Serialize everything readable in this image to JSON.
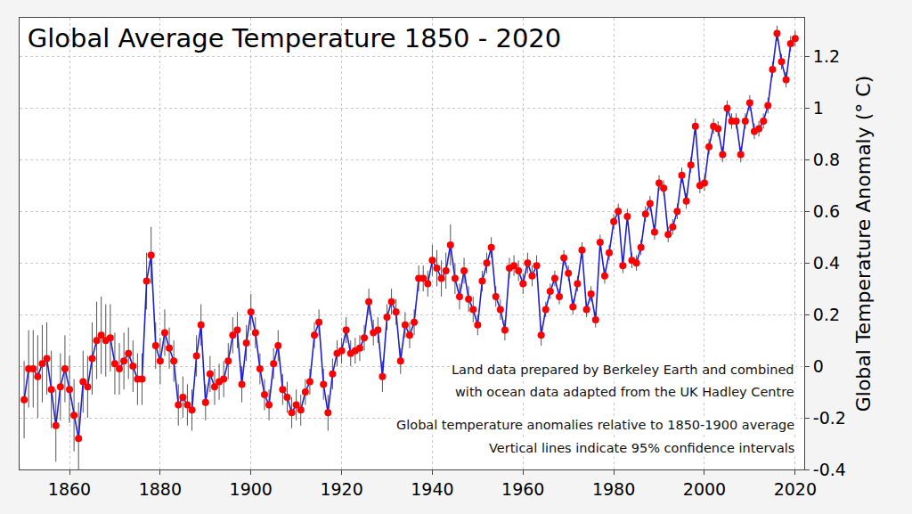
{
  "chart_data": {
    "type": "line",
    "title": "Global Average Temperature 1850 - 2020",
    "y_label": "Global Temperature Anomaly (° C)",
    "annotations": [
      "Land data prepared by Berkeley Earth and combined",
      "with ocean data adapted from the UK Hadley Centre",
      "Global temperature anomalies relative to 1850-1900 average",
      "Vertical lines indicate 95% confidence intervals"
    ],
    "x": [
      1850,
      1851,
      1852,
      1853,
      1854,
      1855,
      1856,
      1857,
      1858,
      1859,
      1860,
      1861,
      1862,
      1863,
      1864,
      1865,
      1866,
      1867,
      1868,
      1869,
      1870,
      1871,
      1872,
      1873,
      1874,
      1875,
      1876,
      1877,
      1878,
      1879,
      1880,
      1881,
      1882,
      1883,
      1884,
      1885,
      1886,
      1887,
      1888,
      1889,
      1890,
      1891,
      1892,
      1893,
      1894,
      1895,
      1896,
      1897,
      1898,
      1899,
      1900,
      1901,
      1902,
      1903,
      1904,
      1905,
      1906,
      1907,
      1908,
      1909,
      1910,
      1911,
      1912,
      1913,
      1914,
      1915,
      1916,
      1917,
      1918,
      1919,
      1920,
      1921,
      1922,
      1923,
      1924,
      1925,
      1926,
      1927,
      1928,
      1929,
      1930,
      1931,
      1932,
      1933,
      1934,
      1935,
      1936,
      1937,
      1938,
      1939,
      1940,
      1941,
      1942,
      1943,
      1944,
      1945,
      1946,
      1947,
      1948,
      1949,
      1950,
      1951,
      1952,
      1953,
      1954,
      1955,
      1956,
      1957,
      1958,
      1959,
      1960,
      1961,
      1962,
      1963,
      1964,
      1965,
      1966,
      1967,
      1968,
      1969,
      1970,
      1971,
      1972,
      1973,
      1974,
      1975,
      1976,
      1977,
      1978,
      1979,
      1980,
      1981,
      1982,
      1983,
      1984,
      1985,
      1986,
      1987,
      1988,
      1989,
      1990,
      1991,
      1992,
      1993,
      1994,
      1995,
      1996,
      1997,
      1998,
      1999,
      2000,
      2001,
      2002,
      2003,
      2004,
      2005,
      2006,
      2007,
      2008,
      2009,
      2010,
      2011,
      2012,
      2013,
      2014,
      2015,
      2016,
      2017,
      2018,
      2019,
      2020
    ],
    "values": [
      -0.13,
      -0.01,
      -0.01,
      -0.04,
      0.01,
      0.03,
      -0.09,
      -0.23,
      -0.08,
      -0.01,
      -0.09,
      -0.19,
      -0.28,
      -0.06,
      -0.08,
      0.03,
      0.1,
      0.12,
      0.1,
      0.11,
      0.01,
      -0.01,
      0.02,
      0.05,
      0.0,
      -0.05,
      -0.05,
      0.33,
      0.43,
      0.08,
      0.02,
      0.13,
      0.07,
      0.02,
      -0.15,
      -0.12,
      -0.15,
      -0.17,
      0.04,
      0.16,
      -0.14,
      -0.03,
      -0.08,
      -0.06,
      -0.05,
      0.02,
      0.12,
      0.14,
      -0.07,
      0.09,
      0.21,
      0.13,
      -0.01,
      -0.11,
      -0.15,
      0.01,
      0.08,
      -0.09,
      -0.12,
      -0.18,
      -0.15,
      -0.17,
      -0.1,
      -0.06,
      0.12,
      0.17,
      -0.07,
      -0.18,
      -0.03,
      0.05,
      0.06,
      0.14,
      0.05,
      0.06,
      0.07,
      0.11,
      0.25,
      0.13,
      0.14,
      -0.04,
      0.19,
      0.25,
      0.21,
      0.02,
      0.16,
      0.12,
      0.17,
      0.34,
      0.34,
      0.32,
      0.41,
      0.38,
      0.34,
      0.37,
      0.47,
      0.34,
      0.27,
      0.37,
      0.26,
      0.22,
      0.16,
      0.33,
      0.4,
      0.46,
      0.27,
      0.22,
      0.14,
      0.38,
      0.39,
      0.37,
      0.32,
      0.4,
      0.35,
      0.39,
      0.12,
      0.22,
      0.29,
      0.34,
      0.27,
      0.42,
      0.36,
      0.23,
      0.32,
      0.45,
      0.22,
      0.28,
      0.18,
      0.48,
      0.35,
      0.44,
      0.56,
      0.6,
      0.39,
      0.58,
      0.41,
      0.4,
      0.46,
      0.59,
      0.63,
      0.52,
      0.71,
      0.69,
      0.51,
      0.54,
      0.6,
      0.74,
      0.64,
      0.78,
      0.93,
      0.7,
      0.71,
      0.85,
      0.93,
      0.92,
      0.82,
      1.0,
      0.95,
      0.95,
      0.82,
      0.95,
      1.02,
      0.91,
      0.92,
      0.95,
      1.01,
      1.15,
      1.29,
      1.18,
      1.11,
      1.25,
      1.27
    ],
    "error": [
      0.15,
      0.15,
      0.15,
      0.16,
      0.15,
      0.14,
      0.15,
      0.14,
      0.13,
      0.13,
      0.13,
      0.14,
      0.14,
      0.12,
      0.12,
      0.14,
      0.15,
      0.15,
      0.14,
      0.13,
      0.12,
      0.1,
      0.11,
      0.1,
      0.1,
      0.1,
      0.1,
      0.11,
      0.11,
      0.09,
      0.09,
      0.09,
      0.08,
      0.08,
      0.08,
      0.08,
      0.08,
      0.08,
      0.08,
      0.08,
      0.07,
      0.07,
      0.07,
      0.07,
      0.07,
      0.07,
      0.07,
      0.07,
      0.07,
      0.07,
      0.07,
      0.06,
      0.06,
      0.06,
      0.06,
      0.06,
      0.06,
      0.06,
      0.06,
      0.06,
      0.06,
      0.06,
      0.05,
      0.05,
      0.05,
      0.05,
      0.06,
      0.07,
      0.06,
      0.05,
      0.05,
      0.05,
      0.05,
      0.05,
      0.05,
      0.05,
      0.05,
      0.05,
      0.05,
      0.06,
      0.05,
      0.05,
      0.05,
      0.05,
      0.05,
      0.05,
      0.05,
      0.05,
      0.05,
      0.05,
      0.06,
      0.07,
      0.07,
      0.07,
      0.08,
      0.06,
      0.05,
      0.05,
      0.05,
      0.05,
      0.04,
      0.04,
      0.04,
      0.04,
      0.04,
      0.04,
      0.04,
      0.04,
      0.04,
      0.04,
      0.04,
      0.04,
      0.04,
      0.04,
      0.04,
      0.03,
      0.03,
      0.03,
      0.03,
      0.03,
      0.03,
      0.03,
      0.03,
      0.03,
      0.03,
      0.03,
      0.03,
      0.03,
      0.03,
      0.03,
      0.03,
      0.03,
      0.03,
      0.03,
      0.03,
      0.03,
      0.03,
      0.03,
      0.03,
      0.03,
      0.03,
      0.03,
      0.03,
      0.03,
      0.03,
      0.03,
      0.03,
      0.03,
      0.03,
      0.03,
      0.03,
      0.03,
      0.03,
      0.03,
      0.03,
      0.03,
      0.03,
      0.03,
      0.03,
      0.03,
      0.03,
      0.03,
      0.03,
      0.03,
      0.03,
      0.03,
      0.03,
      0.03,
      0.03,
      0.03,
      0.03
    ],
    "color": "#1f1fd6",
    "marker": "circle",
    "line_style": "solid",
    "xlim": [
      1849,
      2022
    ],
    "ylim": [
      -0.4,
      1.35
    ],
    "xticks": [
      1860,
      1880,
      1900,
      1920,
      1940,
      1960,
      1980,
      2000,
      2020
    ],
    "yticks": [
      -0.4,
      -0.2,
      0,
      0.2,
      0.4,
      0.6,
      0.8,
      1,
      1.2
    ],
    "grid": true
  }
}
